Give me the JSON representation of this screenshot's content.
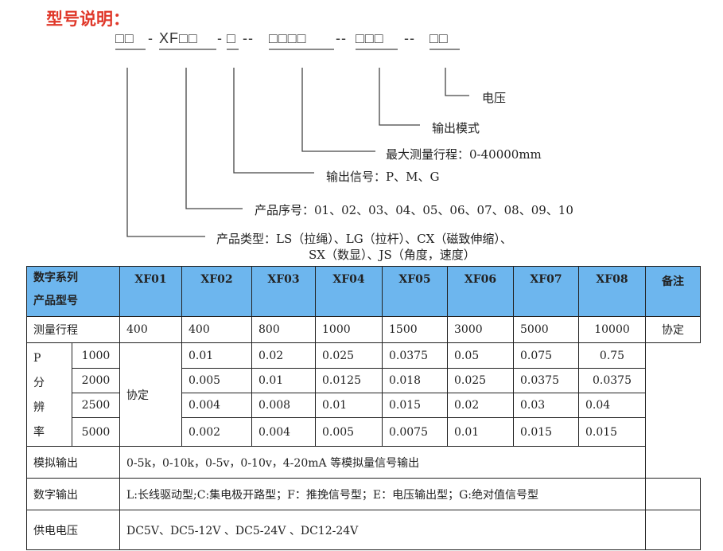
{
  "title": "型号说明：",
  "code_segments": [
    "□□",
    "-",
    "XF□□",
    "-",
    "□",
    "--",
    "□□□□",
    "--",
    "□□□",
    "--",
    "□□"
  ],
  "labels": {
    "voltage": "电压",
    "output_mode": "输出模式",
    "max_range": "最大测量行程：0-40000mm",
    "output_signal": "输出信号：P、M、G",
    "serial": "产品序号：01、02、03、04、05、06、07、08、09、10",
    "type_line1": "产品类型：LS（拉绳）、LG（拉杆）、CX（磁致伸缩）、",
    "type_line2": "SX（数显）、JS（角度，速度）"
  },
  "table": {
    "header_line1": "数字系列",
    "header_line2": "产品型号",
    "models": [
      "XF01",
      "XF02",
      "XF03",
      "XF04",
      "XF05",
      "XF06",
      "XF07",
      "XF08"
    ],
    "remark_header": "备注",
    "range_label": "测量行程",
    "ranges": [
      "400",
      "400",
      "800",
      "1000",
      "1500",
      "3000",
      "5000",
      "10000"
    ],
    "res_label": [
      "P",
      "分",
      "辨",
      "率"
    ],
    "res_rows": [
      {
        "p": "1000",
        "vals": [
          "0.01",
          "0.02",
          "0.025",
          "0.0375",
          "0.05",
          "0.075",
          "0.75"
        ]
      },
      {
        "p": "2000",
        "vals": [
          "0.005",
          "0.01",
          "0.0125",
          "0.018",
          "0.025",
          "0.0375",
          "0.0375"
        ]
      },
      {
        "p": "2500",
        "vals": [
          "0.004",
          "0.008",
          "0.01",
          "0.015",
          "0.02",
          "0.03",
          "0.04"
        ]
      },
      {
        "p": "5000",
        "vals": [
          "0.002",
          "0.004",
          "0.005",
          "0.0075",
          "0.01",
          "0.015",
          "0.015"
        ]
      }
    ],
    "xf01_res": "协定",
    "remark": "协定",
    "analog_label": "模拟输出",
    "analog": "0-5k，0-10k，0-5v，0-10v，4-20mA 等模拟量信号输出",
    "digital_label": "数字输出",
    "digital": "L:长线驱动型;C:集电极开路型；F：推挽信号型；E：电压输出型；G:绝对值信号型",
    "power_label": "供电电压",
    "power": "DC5V、DC5-12V 、DC5-24V 、DC12-24V"
  }
}
